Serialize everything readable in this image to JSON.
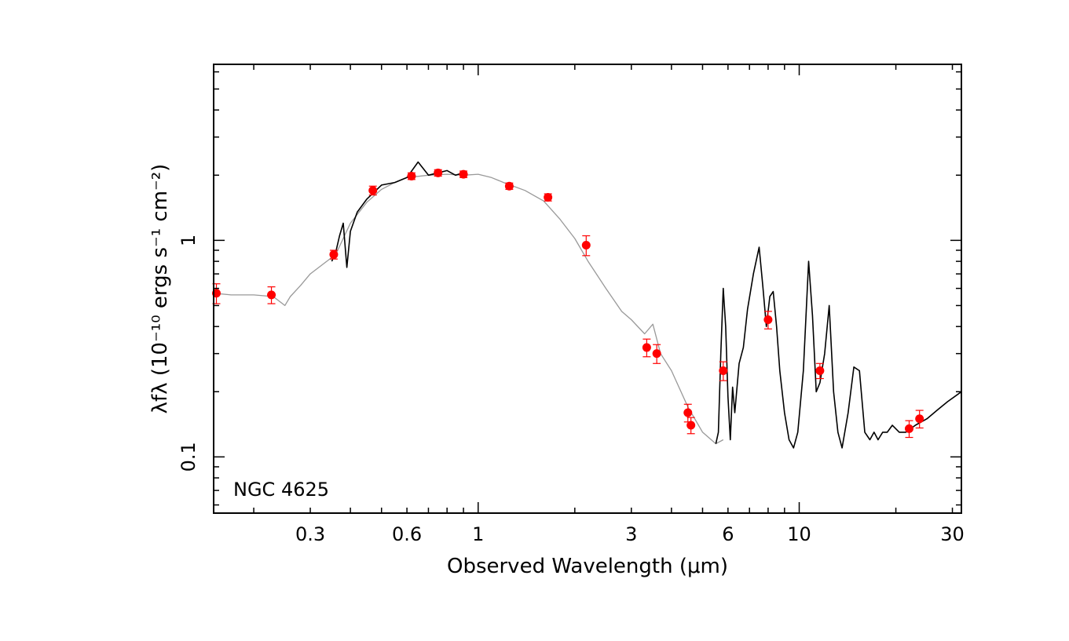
{
  "chart_data": {
    "type": "line",
    "xscale": "log",
    "yscale": "log",
    "xlim": [
      0.15,
      32
    ],
    "ylim": [
      0.055,
      6.5
    ],
    "xticks": [
      0.3,
      0.6,
      1,
      3,
      6,
      10,
      30
    ],
    "xtick_labels": [
      "0.3",
      "0.6",
      "1",
      "3",
      "6",
      "10",
      "30"
    ],
    "yticks": [
      0.1,
      1
    ],
    "ytick_labels": [
      "0.1",
      "1"
    ],
    "xlabel": "Observed Wavelength (μm)",
    "ylabel": "λfλ (10⁻¹⁰ ergs s⁻¹ cm⁻²)",
    "annotation": "NGC 4625",
    "grid": false,
    "legend": "none",
    "colors": {
      "template": "#999999",
      "spectrum": "#000000",
      "photometry": "#ff0000"
    },
    "series": [
      {
        "style": "line-gray",
        "x": [
          0.15,
          0.17,
          0.2,
          0.23,
          0.25,
          0.26,
          0.28,
          0.3,
          0.33,
          0.36,
          0.4,
          0.45,
          0.5,
          0.55,
          0.6,
          0.7,
          0.8,
          0.9,
          1.0,
          1.1,
          1.2,
          1.4,
          1.6,
          1.8,
          2.0,
          2.2,
          2.5,
          2.8,
          3.0,
          3.3,
          3.5,
          3.7,
          4.0,
          4.5,
          5.0,
          5.5,
          5.8
        ],
        "y": [
          0.57,
          0.56,
          0.56,
          0.55,
          0.5,
          0.55,
          0.62,
          0.7,
          0.78,
          0.86,
          1.2,
          1.5,
          1.72,
          1.85,
          1.95,
          2.0,
          2.02,
          2.0,
          2.02,
          1.95,
          1.85,
          1.7,
          1.52,
          1.25,
          1.02,
          0.8,
          0.6,
          0.47,
          0.43,
          0.37,
          0.41,
          0.3,
          0.25,
          0.17,
          0.13,
          0.115,
          0.12
        ]
      },
      {
        "style": "line-black",
        "x": [
          0.35,
          0.36,
          0.37,
          0.38,
          0.39,
          0.4,
          0.42,
          0.45,
          0.5,
          0.55,
          0.6,
          0.65,
          0.7,
          0.75,
          0.8,
          0.85,
          0.9
        ],
        "y": [
          0.8,
          0.88,
          1.05,
          1.2,
          0.75,
          1.1,
          1.35,
          1.55,
          1.8,
          1.85,
          1.95,
          2.3,
          2.0,
          2.05,
          2.1,
          2.0,
          2.05
        ]
      },
      {
        "style": "line-black",
        "x": [
          5.5,
          5.6,
          5.7,
          5.8,
          5.9,
          6.0,
          6.1,
          6.2,
          6.3,
          6.5,
          6.7,
          6.9,
          7.2,
          7.5,
          7.7,
          7.9,
          8.1,
          8.3,
          8.5,
          8.7,
          9.0,
          9.3,
          9.6,
          9.9,
          10.3,
          10.7,
          11.0,
          11.3,
          11.6,
          12.0,
          12.4,
          12.8,
          13.2,
          13.6,
          14.2,
          14.8,
          15.4,
          16.0,
          16.6,
          17.1,
          17.6,
          18.2,
          18.8,
          19.5,
          20.5,
          21.5,
          23.0,
          25.0,
          27.0,
          29.0,
          32.0
        ],
        "y": [
          0.115,
          0.13,
          0.3,
          0.6,
          0.4,
          0.19,
          0.12,
          0.21,
          0.16,
          0.27,
          0.32,
          0.48,
          0.7,
          0.93,
          0.62,
          0.4,
          0.55,
          0.58,
          0.4,
          0.25,
          0.16,
          0.12,
          0.11,
          0.13,
          0.25,
          0.8,
          0.45,
          0.2,
          0.22,
          0.3,
          0.5,
          0.2,
          0.13,
          0.11,
          0.16,
          0.26,
          0.25,
          0.13,
          0.12,
          0.13,
          0.12,
          0.13,
          0.13,
          0.14,
          0.13,
          0.13,
          0.14,
          0.15,
          0.165,
          0.18,
          0.2
        ]
      },
      {
        "style": "points-red",
        "x": [
          0.153,
          0.227,
          0.355,
          0.47,
          0.62,
          0.75,
          0.9,
          1.25,
          1.65,
          2.17,
          3.35,
          3.6,
          4.5,
          4.6,
          5.8,
          8.0,
          11.6,
          22.0,
          23.7
        ],
        "y": [
          0.57,
          0.56,
          0.86,
          1.7,
          1.98,
          2.05,
          2.02,
          1.78,
          1.58,
          0.95,
          0.32,
          0.3,
          0.16,
          0.14,
          0.25,
          0.43,
          0.25,
          0.135,
          0.15
        ],
        "yerr": [
          0.06,
          0.05,
          0.04,
          0.08,
          0.07,
          0.07,
          0.07,
          0.06,
          0.06,
          0.1,
          0.03,
          0.03,
          0.015,
          0.012,
          0.025,
          0.04,
          0.02,
          0.012,
          0.014
        ]
      }
    ]
  }
}
